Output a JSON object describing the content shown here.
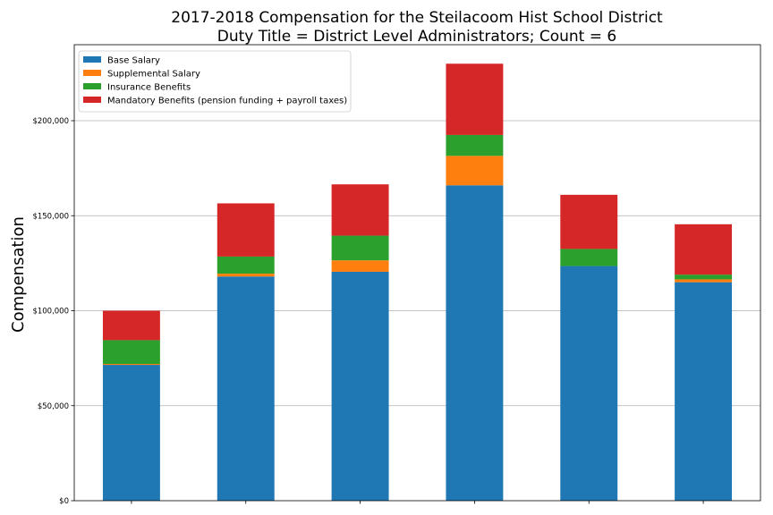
{
  "chart_data": {
    "type": "bar",
    "stacked": true,
    "title": [
      "2017-2018 Compensation for the Steilacoom Hist School District",
      "Duty Title = District Level Administrators; Count = 6"
    ],
    "xlabel": "",
    "ylabel": "Compensation",
    "ylim": [
      0,
      240000
    ],
    "yticks": [
      0,
      50000,
      100000,
      150000,
      200000
    ],
    "ytick_labels": [
      "$0",
      "$50,000",
      "$100,000",
      "$150,000",
      "$200,000"
    ],
    "grid": "horizontal",
    "legend_placement": "top-left",
    "categories": [
      "",
      "",
      "",
      "",
      "",
      ""
    ],
    "series": [
      {
        "name": "Base Salary",
        "color": "#1f77b4",
        "values": [
          71500,
          118000,
          120500,
          166000,
          123500,
          115000
        ]
      },
      {
        "name": "Supplemental Salary",
        "color": "#ff7f0e",
        "values": [
          500,
          1500,
          6000,
          15500,
          0,
          1500
        ]
      },
      {
        "name": "Insurance Benefits",
        "color": "#2ca02c",
        "values": [
          12500,
          9000,
          13000,
          11000,
          9000,
          2500
        ]
      },
      {
        "name": "Mandatory Benefits (pension funding + payroll taxes)",
        "color": "#d62728",
        "values": [
          15500,
          28000,
          27000,
          37500,
          28500,
          26500
        ]
      }
    ]
  }
}
